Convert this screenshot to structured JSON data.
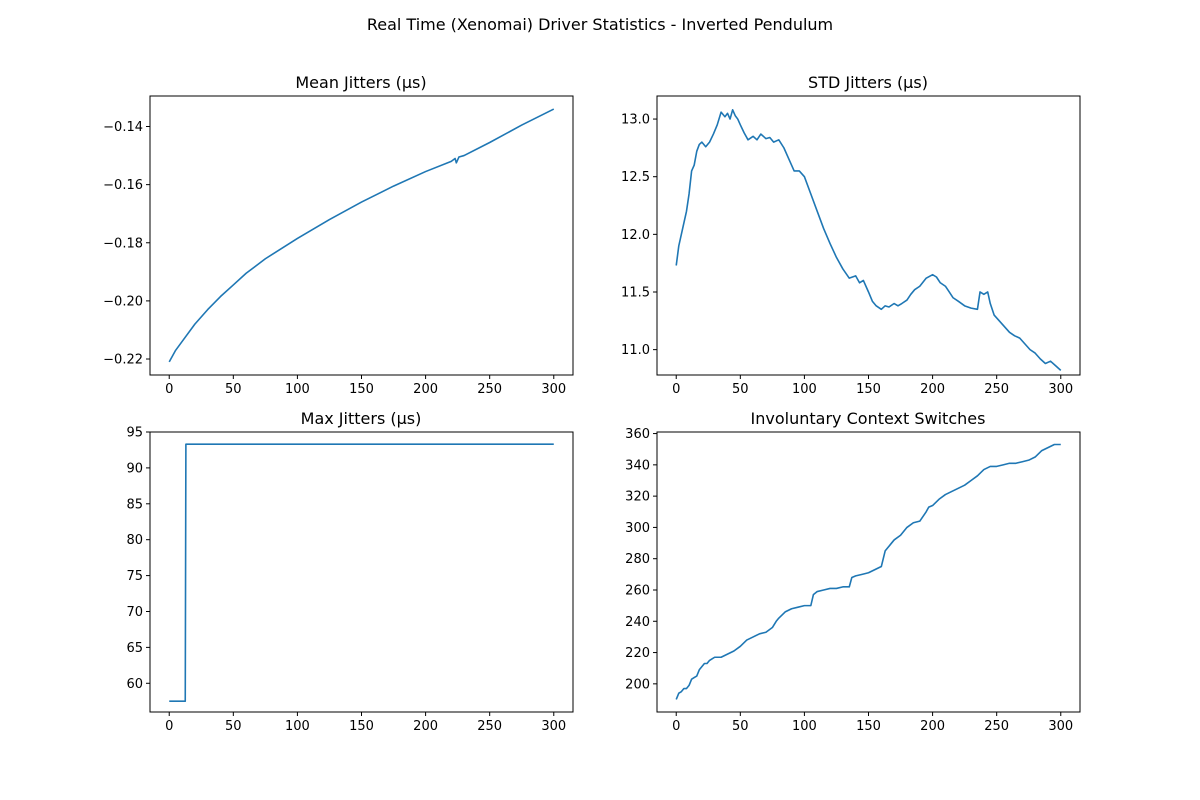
{
  "figure": {
    "title": "Real Time (Xenomai) Driver Statistics - Inverted Pendulum",
    "line_color": "#1f77b4"
  },
  "chart_data": [
    {
      "type": "line",
      "title": "Mean Jitters (µs)",
      "xlabel": "",
      "ylabel": "",
      "xlim": [
        -15,
        315
      ],
      "ylim": [
        -0.2255,
        -0.1295
      ],
      "xticks": [
        0,
        50,
        100,
        150,
        200,
        250,
        300
      ],
      "yticks": [
        -0.22,
        -0.2,
        -0.18,
        -0.16,
        -0.14
      ],
      "ytick_decimals": 2,
      "grid": false,
      "series": [
        {
          "x": [
            0,
            5,
            10,
            20,
            30,
            40,
            50,
            60,
            75,
            100,
            125,
            150,
            175,
            200,
            220,
            223,
            224,
            226,
            230,
            250,
            275,
            300
          ],
          "y": [
            -0.221,
            -0.217,
            -0.214,
            -0.208,
            -0.203,
            -0.1985,
            -0.1945,
            -0.1905,
            -0.1855,
            -0.1785,
            -0.172,
            -0.166,
            -0.1605,
            -0.1555,
            -0.152,
            -0.151,
            -0.1525,
            -0.1505,
            -0.15,
            -0.1455,
            -0.1395,
            -0.134
          ]
        }
      ]
    },
    {
      "type": "line",
      "title": "STD Jitters (µs)",
      "xlabel": "",
      "ylabel": "",
      "xlim": [
        -15,
        315
      ],
      "ylim": [
        10.78,
        13.2
      ],
      "xticks": [
        0,
        50,
        100,
        150,
        200,
        250,
        300
      ],
      "yticks": [
        11.0,
        11.5,
        12.0,
        12.5,
        13.0
      ],
      "ytick_decimals": 1,
      "grid": false,
      "series": [
        {
          "x": [
            0,
            2,
            5,
            8,
            10,
            12,
            14,
            16,
            18,
            20,
            23,
            26,
            29,
            32,
            35,
            38,
            40,
            42,
            44,
            46,
            48,
            50,
            53,
            56,
            60,
            63,
            66,
            70,
            73,
            76,
            80,
            84,
            88,
            92,
            96,
            100,
            105,
            110,
            115,
            120,
            125,
            130,
            135,
            140,
            143,
            146,
            150,
            153,
            156,
            160,
            163,
            166,
            170,
            173,
            176,
            180,
            183,
            186,
            190,
            195,
            200,
            203,
            206,
            210,
            213,
            216,
            220,
            225,
            230,
            235,
            237,
            240,
            243,
            245,
            248,
            252,
            256,
            260,
            264,
            268,
            272,
            276,
            280,
            284,
            288,
            292,
            296,
            300
          ],
          "y": [
            11.73,
            11.9,
            12.05,
            12.2,
            12.35,
            12.55,
            12.6,
            12.72,
            12.78,
            12.8,
            12.76,
            12.8,
            12.87,
            12.95,
            13.06,
            13.02,
            13.05,
            13.0,
            13.08,
            13.03,
            13.0,
            12.95,
            12.88,
            12.82,
            12.85,
            12.82,
            12.87,
            12.83,
            12.84,
            12.8,
            12.82,
            12.75,
            12.65,
            12.55,
            12.55,
            12.5,
            12.35,
            12.2,
            12.05,
            11.92,
            11.8,
            11.7,
            11.62,
            11.64,
            11.58,
            11.6,
            11.5,
            11.42,
            11.38,
            11.35,
            11.38,
            11.37,
            11.4,
            11.38,
            11.4,
            11.43,
            11.48,
            11.52,
            11.55,
            11.62,
            11.65,
            11.63,
            11.58,
            11.55,
            11.5,
            11.45,
            11.42,
            11.38,
            11.36,
            11.35,
            11.5,
            11.48,
            11.5,
            11.4,
            11.3,
            11.25,
            11.2,
            11.15,
            11.12,
            11.1,
            11.05,
            11.0,
            10.97,
            10.92,
            10.88,
            10.9,
            10.86,
            10.82
          ]
        }
      ]
    },
    {
      "type": "line",
      "title": "Max Jitters (µs)",
      "xlabel": "",
      "ylabel": "",
      "xlim": [
        -15,
        315
      ],
      "ylim": [
        56.0,
        95.0
      ],
      "xticks": [
        0,
        50,
        100,
        150,
        200,
        250,
        300
      ],
      "yticks": [
        60,
        65,
        70,
        75,
        80,
        85,
        90,
        95
      ],
      "ytick_decimals": 0,
      "grid": false,
      "series": [
        {
          "x": [
            0,
            12.5,
            13,
            300
          ],
          "y": [
            57.5,
            57.5,
            93.3,
            93.3
          ]
        }
      ]
    },
    {
      "type": "line",
      "title": "Involuntary Context Switches",
      "xlabel": "",
      "ylabel": "",
      "xlim": [
        -15,
        315
      ],
      "ylim": [
        182,
        361
      ],
      "xticks": [
        0,
        50,
        100,
        150,
        200,
        250,
        300
      ],
      "yticks": [
        200,
        220,
        240,
        260,
        280,
        300,
        320,
        340,
        360
      ],
      "ytick_decimals": 0,
      "grid": false,
      "series": [
        {
          "x": [
            0,
            2,
            4,
            6,
            8,
            10,
            12,
            14,
            16,
            18,
            20,
            22,
            24,
            26,
            28,
            30,
            35,
            40,
            45,
            50,
            55,
            60,
            65,
            70,
            75,
            78,
            80,
            85,
            90,
            95,
            100,
            105,
            107,
            110,
            115,
            120,
            125,
            130,
            135,
            137,
            140,
            145,
            150,
            155,
            160,
            163,
            165,
            168,
            170,
            175,
            180,
            185,
            190,
            195,
            197,
            200,
            205,
            210,
            215,
            220,
            225,
            230,
            235,
            240,
            245,
            250,
            255,
            260,
            265,
            270,
            275,
            280,
            285,
            290,
            295,
            300
          ],
          "y": [
            190,
            194,
            195,
            197,
            197,
            199,
            203,
            204,
            205,
            209,
            211,
            213,
            213,
            215,
            216,
            217,
            217,
            219,
            221,
            224,
            228,
            230,
            232,
            233,
            236,
            240,
            242,
            246,
            248,
            249,
            250,
            250,
            257,
            259,
            260,
            261,
            261,
            262,
            262,
            268,
            269,
            270,
            271,
            273,
            275,
            285,
            287,
            290,
            292,
            295,
            300,
            303,
            304,
            310,
            313,
            314,
            318,
            321,
            323,
            325,
            327,
            330,
            333,
            337,
            339,
            339,
            340,
            341,
            341,
            342,
            343,
            345,
            349,
            351,
            353,
            353
          ]
        }
      ]
    }
  ]
}
